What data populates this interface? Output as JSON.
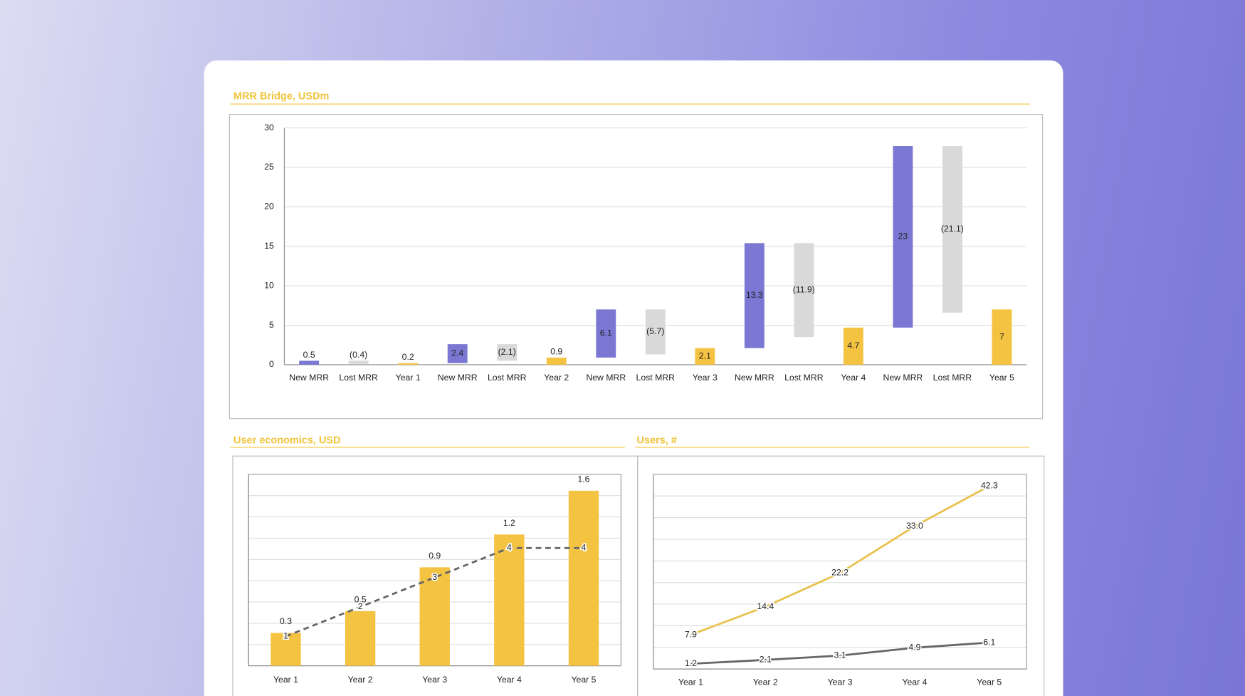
{
  "chart_data": [
    {
      "type": "waterfall",
      "title": "MRR Bridge, USDm",
      "categories": [
        "New MRR",
        "Lost MRR",
        "Year 1",
        "New MRR",
        "Lost MRR",
        "Year 2",
        "New MRR",
        "Lost MRR",
        "Year 3",
        "New MRR",
        "Lost MRR",
        "Year 4",
        "New MRR",
        "Lost MRR",
        "Year 5"
      ],
      "values": [
        0.5,
        -0.4,
        0.2,
        2.4,
        -2.1,
        0.9,
        6.1,
        -5.7,
        2.1,
        13.3,
        -11.9,
        4.7,
        23,
        -21.1,
        7
      ],
      "value_labels": [
        "0.5",
        "(0.4)",
        "0.2",
        "2.4",
        "(2.1)",
        "0.9",
        "6.1",
        "(5.7)",
        "2.1",
        "13.3",
        "(11.9)",
        "4.7",
        "23",
        "(21.1)",
        "7"
      ],
      "colors": [
        "#7b78d4",
        "#d9d9d9",
        "#f5c342",
        "#7b78d4",
        "#d9d9d9",
        "#f5c342",
        "#7b78d4",
        "#d9d9d9",
        "#f5c342",
        "#7b78d4",
        "#d9d9d9",
        "#f5c342",
        "#7b78d4",
        "#d9d9d9",
        "#f5c342"
      ],
      "total_color": "#f5c342",
      "ylim": [
        0,
        30
      ],
      "yticks": [
        0,
        5,
        10,
        15,
        20,
        25,
        30
      ],
      "grid": true
    },
    {
      "type": "bar_line",
      "title": "User economics, USD",
      "categories": [
        "Year 1",
        "Year 2",
        "Year 3",
        "Year 4",
        "Year 5"
      ],
      "series": [
        {
          "type": "bar",
          "color": "#f5c342",
          "values": [
            0.3,
            0.5,
            0.9,
            1.2,
            1.6
          ]
        },
        {
          "type": "line",
          "color": "#666666",
          "dashed": true,
          "axis": "y2",
          "values": [
            1,
            2,
            3,
            4,
            4
          ]
        }
      ],
      "ylim": [
        0,
        1.75
      ],
      "y2lim": [
        0,
        6.5
      ],
      "grid": true
    },
    {
      "type": "line",
      "title": "Users, #",
      "categories": [
        "Year 1",
        "Year 2",
        "Year 3",
        "Year 4",
        "Year 5"
      ],
      "series": [
        {
          "type": "line",
          "color": "#e8c24e",
          "values": [
            7.9,
            14.4,
            22.2,
            33.0,
            42.3
          ],
          "value_labels": [
            "7.9",
            "14.4",
            "22.2",
            "33.0",
            "42.3"
          ]
        },
        {
          "type": "line",
          "color": "#666666",
          "values": [
            1.2,
            2.1,
            3.1,
            4.9,
            6.1
          ]
        }
      ],
      "ylim": [
        0,
        45
      ],
      "grid": true
    }
  ]
}
